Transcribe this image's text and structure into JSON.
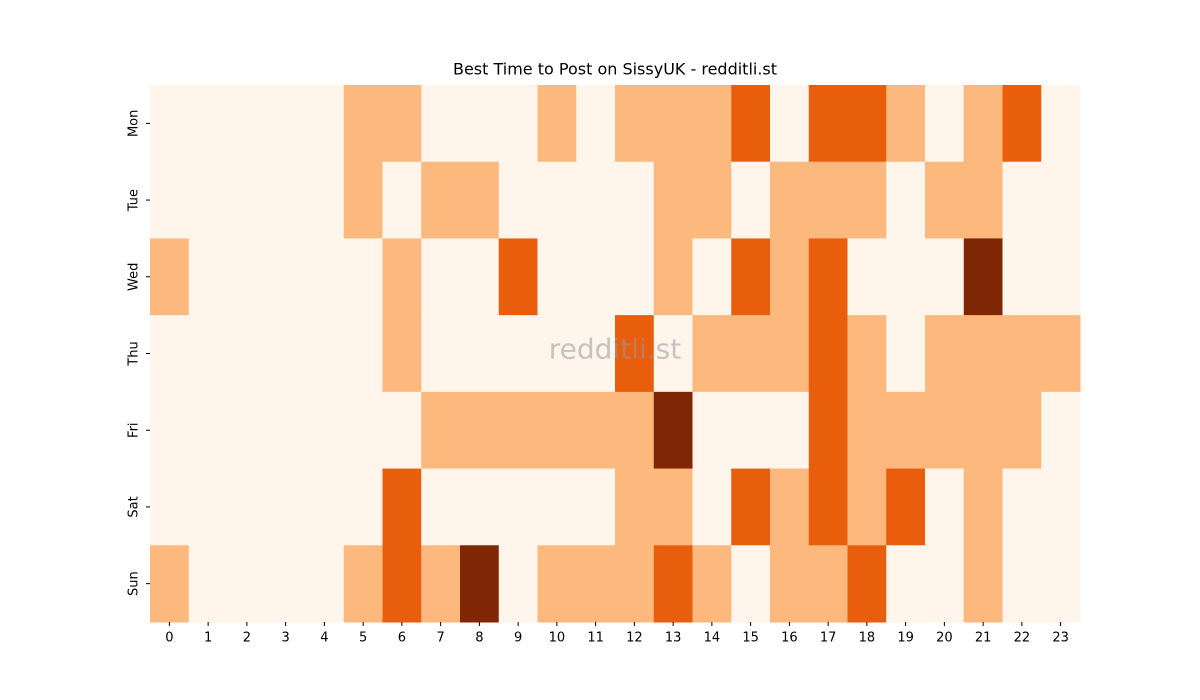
{
  "chart_data": {
    "type": "heatmap",
    "title": "Best Time to Post on SissyUK - redditli.st",
    "watermark": "redditli.st",
    "x": [
      0,
      1,
      2,
      3,
      4,
      5,
      6,
      7,
      8,
      9,
      10,
      11,
      12,
      13,
      14,
      15,
      16,
      17,
      18,
      19,
      20,
      21,
      22,
      23
    ],
    "categories": [
      "Mon",
      "Tue",
      "Wed",
      "Thu",
      "Fri",
      "Sat",
      "Sun"
    ],
    "colors": [
      "#fff5eb",
      "#fdb97d",
      "#e95e0d",
      "#7f2704"
    ],
    "values": [
      [
        0,
        0,
        0,
        0,
        0,
        1,
        1,
        0,
        0,
        0,
        1,
        0,
        1,
        1,
        1,
        2,
        0,
        2,
        2,
        1,
        0,
        1,
        2,
        0
      ],
      [
        0,
        0,
        0,
        0,
        0,
        1,
        0,
        1,
        1,
        0,
        0,
        0,
        0,
        1,
        1,
        0,
        1,
        1,
        1,
        0,
        1,
        1,
        0,
        0
      ],
      [
        1,
        0,
        0,
        0,
        0,
        0,
        1,
        0,
        0,
        2,
        0,
        0,
        0,
        1,
        0,
        2,
        1,
        2,
        0,
        0,
        0,
        3,
        0,
        0
      ],
      [
        0,
        0,
        0,
        0,
        0,
        0,
        1,
        0,
        0,
        0,
        0,
        0,
        2,
        0,
        1,
        1,
        1,
        2,
        1,
        0,
        1,
        1,
        1,
        1
      ],
      [
        0,
        0,
        0,
        0,
        0,
        0,
        0,
        1,
        1,
        1,
        1,
        1,
        1,
        3,
        0,
        0,
        0,
        2,
        1,
        1,
        1,
        1,
        1,
        0
      ],
      [
        0,
        0,
        0,
        0,
        0,
        0,
        2,
        0,
        0,
        0,
        0,
        0,
        1,
        1,
        0,
        2,
        1,
        2,
        1,
        2,
        0,
        1,
        0,
        0
      ],
      [
        1,
        0,
        0,
        0,
        0,
        1,
        2,
        1,
        3,
        0,
        1,
        1,
        1,
        2,
        1,
        0,
        1,
        1,
        2,
        0,
        0,
        1,
        0,
        0
      ]
    ]
  }
}
